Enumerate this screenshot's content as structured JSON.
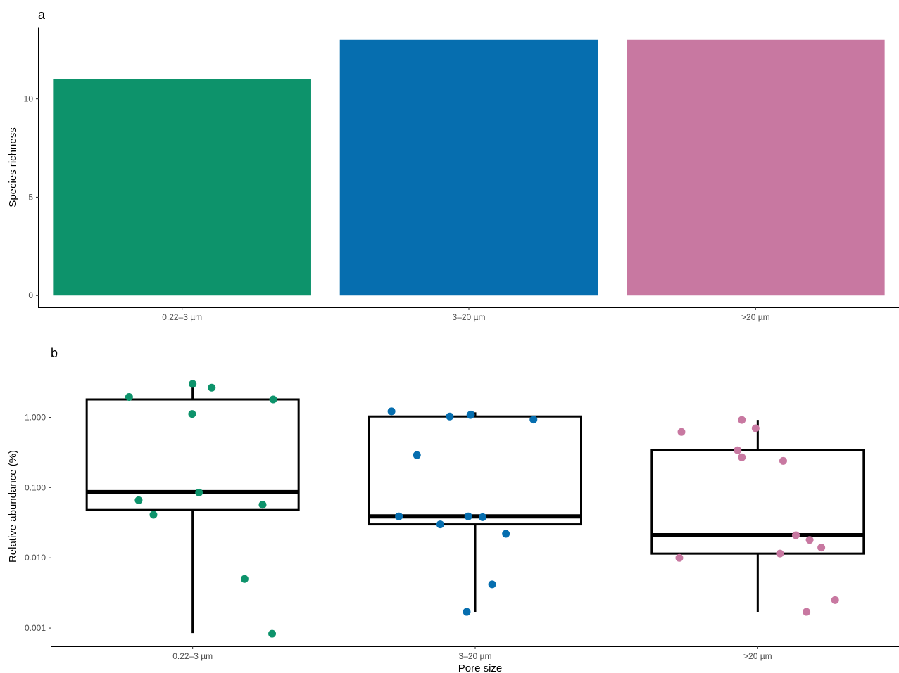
{
  "chart_data": [
    {
      "panel_tag": "a",
      "type": "bar",
      "categories": [
        "0.22–3 µm",
        "3–20 µm",
        ">20 µm"
      ],
      "values": [
        11,
        13,
        13
      ],
      "colors": [
        "#0d936b",
        "#066eaf",
        "#c878a1"
      ],
      "ylabel": "Species richness",
      "xlabel": "",
      "ylim": [
        -0.6,
        13.6
      ],
      "yticks": [
        0,
        5,
        10
      ],
      "ytick_labels": [
        "0",
        "5",
        "10"
      ],
      "grid": false
    },
    {
      "panel_tag": "b",
      "type": "box",
      "categories": [
        "0.22–3 µm",
        "3–20 µm",
        ">20 µm"
      ],
      "colors": [
        "#0d936b",
        "#066eaf",
        "#c878a1"
      ],
      "ylabel": "Relative abundance (%)",
      "xlabel": "Pore size",
      "yscale": "log",
      "ylim": [
        0.00055,
        5.2
      ],
      "yticks": [
        0.001,
        0.01,
        0.1,
        1
      ],
      "ytick_labels": [
        "0.001",
        "0.010",
        "0.100",
        "1.000"
      ],
      "grid": false,
      "boxes": [
        {
          "whisker_low": 0.00085,
          "q1": 0.048,
          "median": 0.086,
          "q3": 1.8,
          "whisker_high": 3.0
        },
        {
          "whisker_low": 0.0017,
          "q1": 0.03,
          "median": 0.039,
          "q3": 1.03,
          "whisker_high": 1.18
        },
        {
          "whisker_low": 0.0017,
          "q1": 0.0115,
          "median": 0.021,
          "q3": 0.34,
          "whisker_high": 0.92
        }
      ],
      "points": [
        [
          {
            "offset": -0.6,
            "y": 1.95
          },
          {
            "offset": 0.0,
            "y": 3.0
          },
          {
            "offset": 0.18,
            "y": 2.65
          },
          {
            "offset": 0.76,
            "y": 1.8
          },
          {
            "offset": -0.005,
            "y": 1.12
          },
          {
            "offset": 0.06,
            "y": 0.085
          },
          {
            "offset": -0.51,
            "y": 0.066
          },
          {
            "offset": 0.66,
            "y": 0.057
          },
          {
            "offset": -0.37,
            "y": 0.041
          },
          {
            "offset": 0.49,
            "y": 0.005
          },
          {
            "offset": 0.75,
            "y": 0.00083
          }
        ],
        [
          {
            "offset": -0.79,
            "y": 1.22
          },
          {
            "offset": -0.24,
            "y": 1.03
          },
          {
            "offset": -0.04,
            "y": 1.1
          },
          {
            "offset": -0.045,
            "y": 1.08
          },
          {
            "offset": 0.55,
            "y": 0.93
          },
          {
            "offset": -0.55,
            "y": 0.29
          },
          {
            "offset": -0.72,
            "y": 0.039
          },
          {
            "offset": -0.065,
            "y": 0.039
          },
          {
            "offset": 0.07,
            "y": 0.038
          },
          {
            "offset": -0.33,
            "y": 0.03
          },
          {
            "offset": 0.29,
            "y": 0.022
          },
          {
            "offset": 0.16,
            "y": 0.0042
          },
          {
            "offset": -0.08,
            "y": 0.0017
          }
        ],
        [
          {
            "offset": -0.15,
            "y": 0.92
          },
          {
            "offset": -0.72,
            "y": 0.62
          },
          {
            "offset": -0.02,
            "y": 0.7
          },
          {
            "offset": -0.19,
            "y": 0.34
          },
          {
            "offset": -0.15,
            "y": 0.27
          },
          {
            "offset": 0.24,
            "y": 0.24
          },
          {
            "offset": 0.36,
            "y": 0.021
          },
          {
            "offset": 0.49,
            "y": 0.018
          },
          {
            "offset": 0.6,
            "y": 0.014
          },
          {
            "offset": 0.21,
            "y": 0.0115
          },
          {
            "offset": -0.74,
            "y": 0.01
          },
          {
            "offset": 0.73,
            "y": 0.0025
          },
          {
            "offset": 0.46,
            "y": 0.0017
          }
        ]
      ]
    }
  ]
}
